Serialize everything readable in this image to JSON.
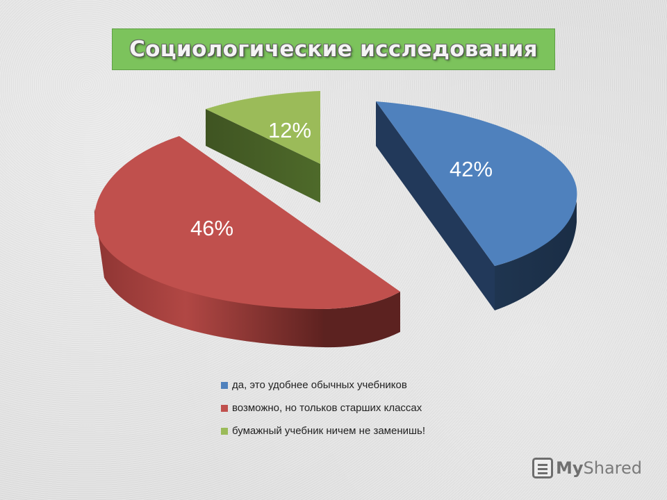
{
  "title": "Социологические исследования",
  "chart_data": {
    "type": "pie",
    "title": "Социологические исследования",
    "slices": [
      {
        "label": "да, это удобнее обычных учебников",
        "value": 42,
        "display": "42%",
        "color": "#4f81bd"
      },
      {
        "label": "возможно, но тольков старших классах",
        "value": 46,
        "display": "46%",
        "color": "#c0504d"
      },
      {
        "label": "бумажный учебник ничем не заменишь!",
        "value": 12,
        "display": "12%",
        "color": "#9bbb59"
      }
    ],
    "legend_position": "bottom",
    "style": "3d-exploded"
  },
  "watermark": {
    "brand_a": "My",
    "brand_b": "Shared",
    "icon": "presentation-icon"
  }
}
